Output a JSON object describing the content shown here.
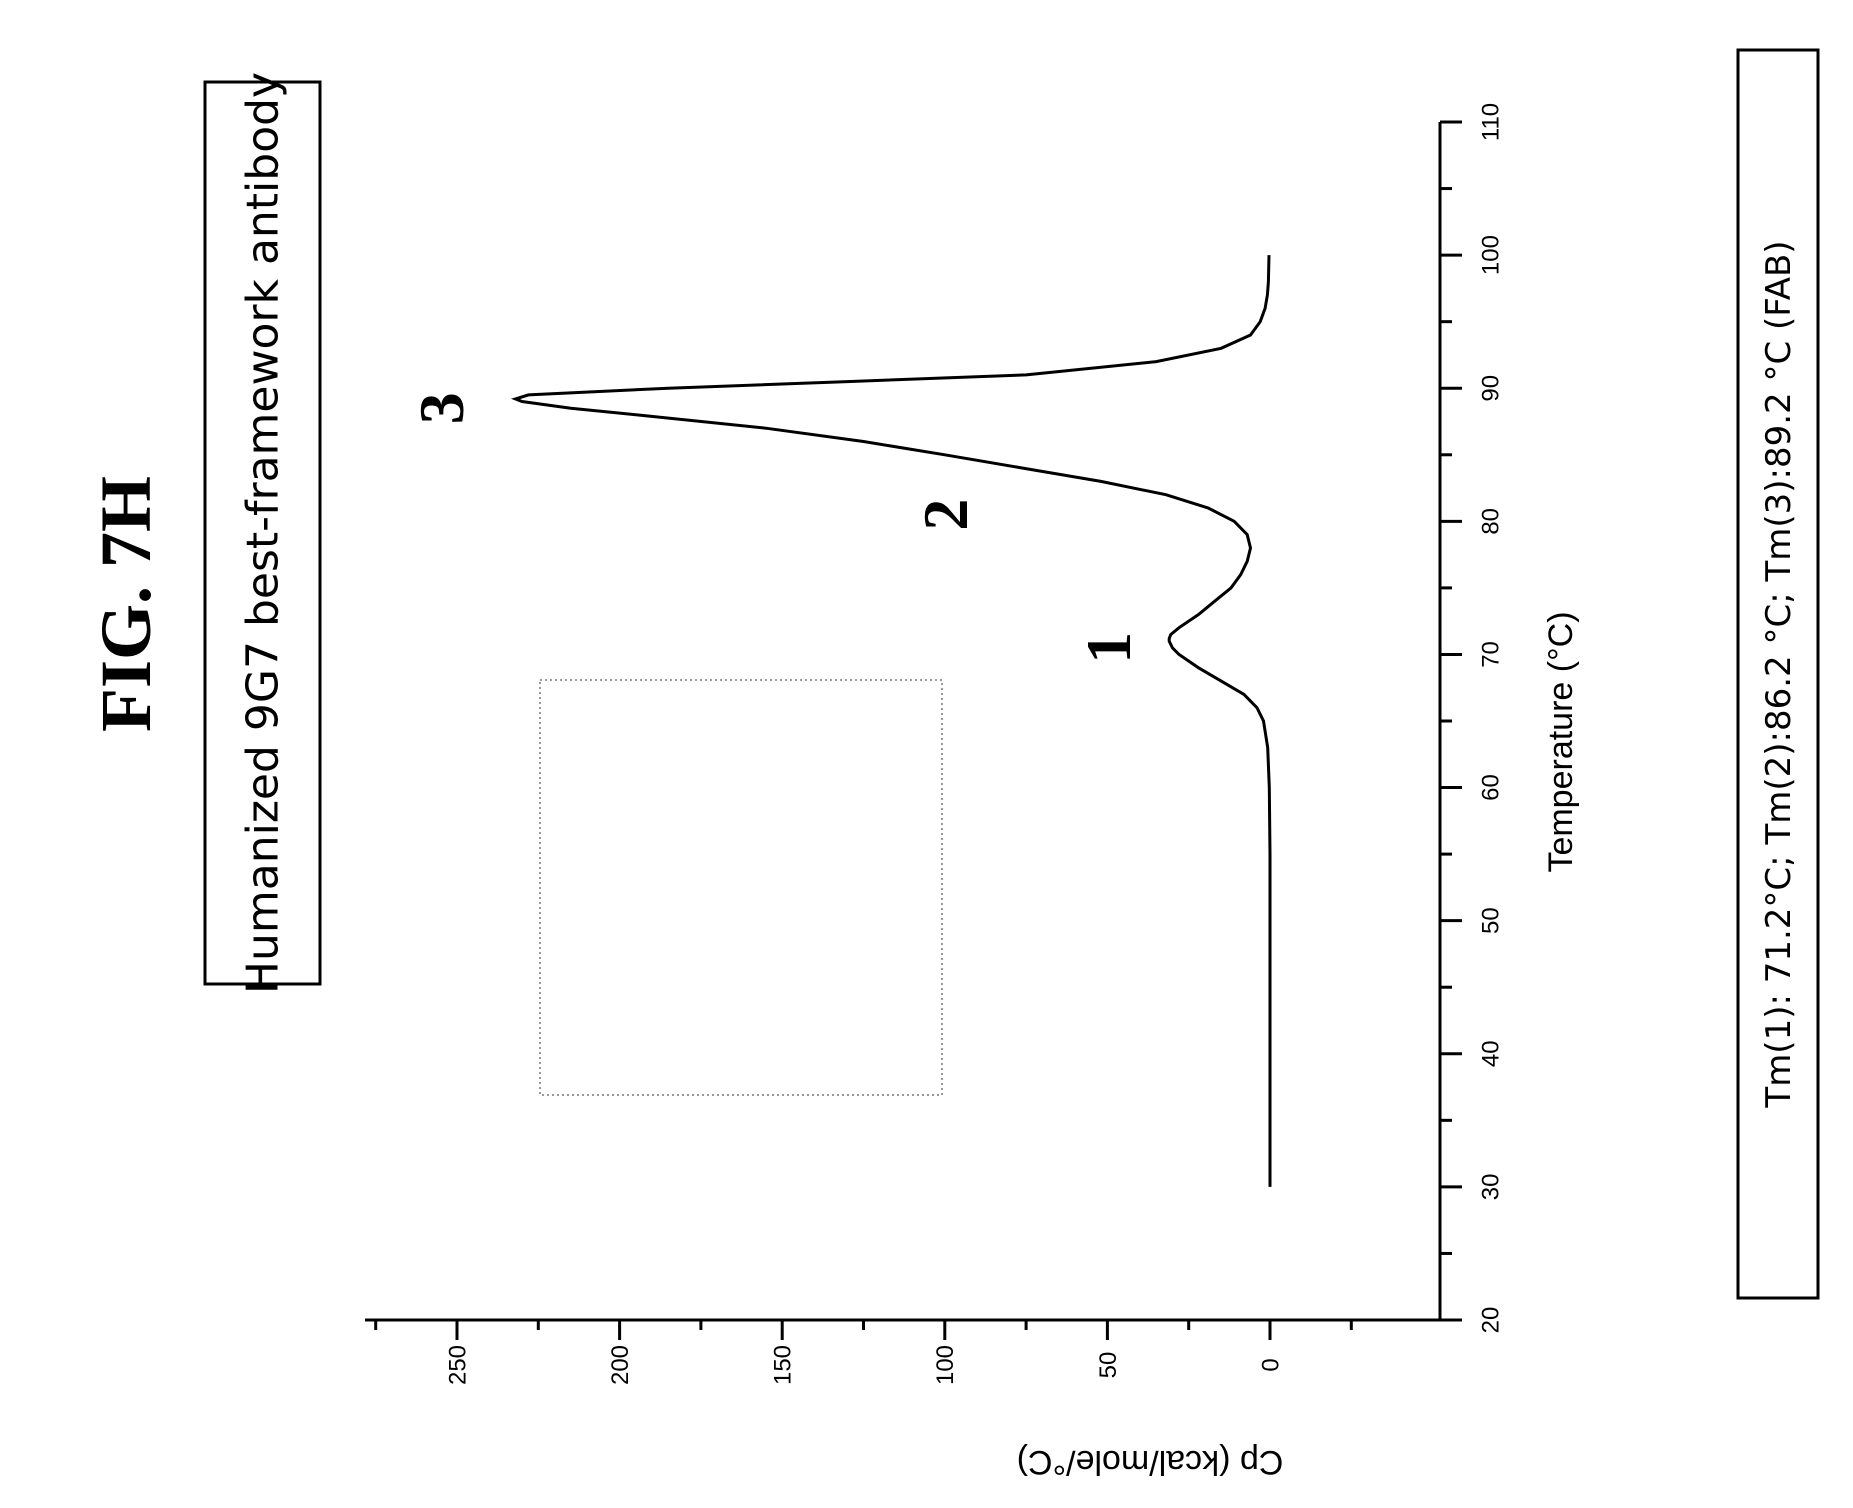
{
  "figure_title": "FIG. 7H",
  "footnote": "Tm(1): 71.2°C; Tm(2):86.2 °C; Tm(3):89.2 °C (FAB)",
  "chart_data": {
    "type": "line",
    "title": "Humanized 9G7 best-framework antibody",
    "xlabel": "Temperature (°C)",
    "ylabel": "Cp (kcal/mole/°C)",
    "xlim": [
      20,
      110
    ],
    "ylim": [
      -25,
      275
    ],
    "xticks": [
      20,
      30,
      40,
      50,
      60,
      70,
      80,
      90,
      100,
      110
    ],
    "yticks": [
      0,
      50,
      100,
      150,
      200,
      250
    ],
    "grid": false,
    "series": [
      {
        "x": [
          30,
          40,
          50,
          55,
          60,
          63,
          65,
          66,
          67,
          68,
          69,
          70,
          70.5,
          71,
          71.2,
          71.5,
          72,
          73,
          74,
          75,
          76,
          77,
          78,
          79,
          80,
          81,
          82,
          83,
          84,
          85,
          86,
          87,
          88,
          88.5,
          89,
          89.2,
          89.5,
          90,
          90.5,
          91,
          92,
          93,
          94,
          95,
          96,
          97,
          98,
          100
        ],
        "values": [
          0,
          0,
          0,
          0,
          0.2,
          0.7,
          2,
          4,
          8,
          15,
          22,
          28,
          30,
          31,
          31,
          30.5,
          28,
          22,
          17,
          12,
          9,
          7,
          6,
          7,
          11,
          19,
          32,
          52,
          76,
          100,
          125,
          155,
          195,
          215,
          230,
          232,
          228,
          185,
          130,
          75,
          35,
          15,
          6,
          3,
          1.5,
          0.8,
          0.5,
          0.3
        ]
      }
    ],
    "annotations": [
      {
        "text": "1",
        "x": 70.5,
        "y": 50
      },
      {
        "text": "2",
        "x": 80.5,
        "y": 100
      },
      {
        "text": "3",
        "x": 88.5,
        "y": 255
      }
    ]
  }
}
